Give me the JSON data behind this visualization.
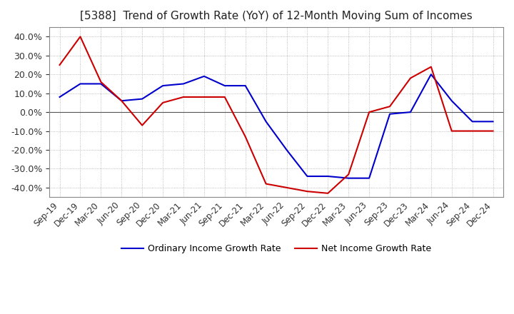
{
  "title": "[5388]  Trend of Growth Rate (YoY) of 12-Month Moving Sum of Incomes",
  "title_fontsize": 11,
  "ylim": [
    -0.45,
    0.45
  ],
  "yticks": [
    -0.4,
    -0.3,
    -0.2,
    -0.1,
    0.0,
    0.1,
    0.2,
    0.3,
    0.4
  ],
  "background_color": "#ffffff",
  "grid_color": "#aaaaaa",
  "ordinary_color": "#0000cc",
  "net_color": "#cc0000",
  "legend_ordinary": "Ordinary Income Growth Rate",
  "legend_net": "Net Income Growth Rate",
  "x_labels": [
    "Sep-19",
    "Dec-19",
    "Mar-20",
    "Jun-20",
    "Sep-20",
    "Dec-20",
    "Mar-21",
    "Jun-21",
    "Sep-21",
    "Dec-21",
    "Mar-22",
    "Jun-22",
    "Sep-22",
    "Dec-22",
    "Mar-23",
    "Jun-23",
    "Sep-23",
    "Dec-23",
    "Mar-24",
    "Jun-24",
    "Sep-24",
    "Dec-24"
  ],
  "ordinary_income": [
    0.08,
    0.15,
    0.15,
    0.06,
    0.07,
    0.14,
    0.15,
    0.19,
    0.14,
    0.14,
    -0.05,
    -0.2,
    -0.34,
    -0.34,
    -0.35,
    -0.35,
    -0.01,
    0.0,
    0.2,
    0.06,
    -0.05,
    -0.05
  ],
  "net_income": [
    0.25,
    0.4,
    0.16,
    0.06,
    -0.07,
    0.05,
    0.08,
    0.08,
    0.08,
    -0.13,
    -0.38,
    -0.4,
    -0.42,
    -0.43,
    -0.33,
    0.0,
    0.03,
    0.18,
    0.24,
    -0.1,
    -0.1,
    -0.1
  ]
}
